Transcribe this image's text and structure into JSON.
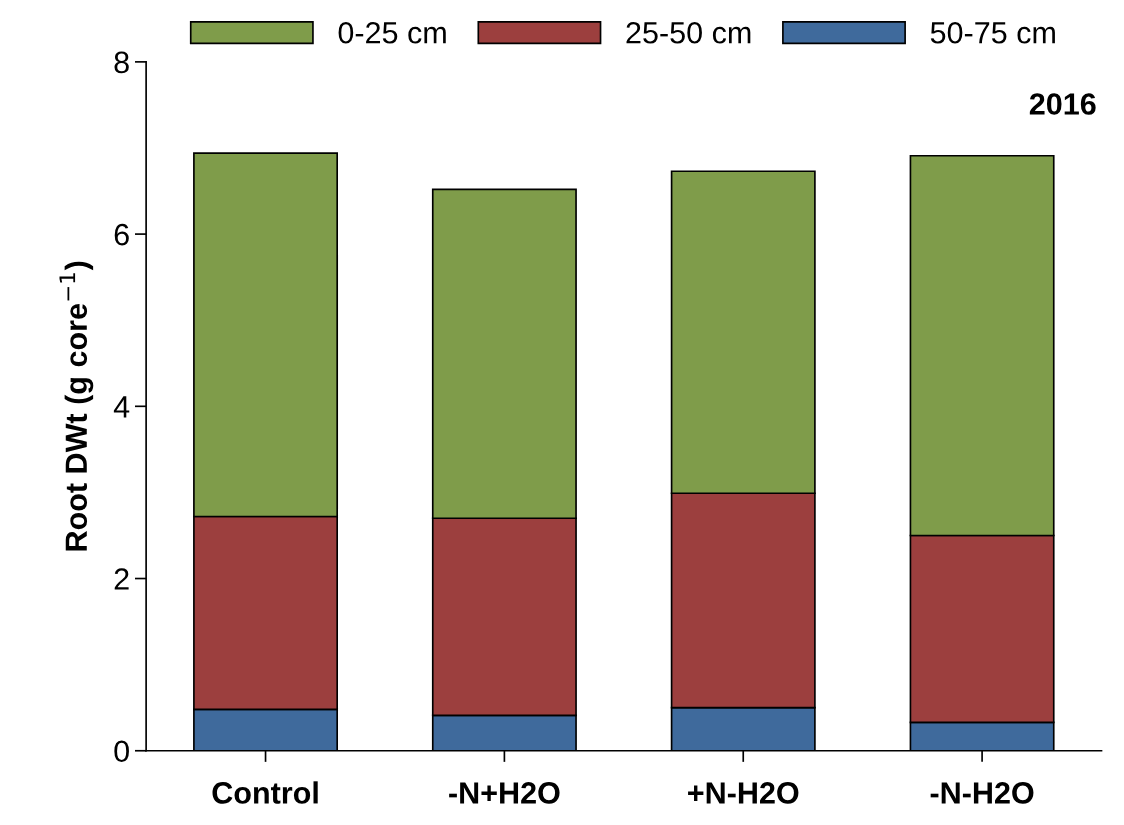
{
  "chart_data": {
    "type": "bar",
    "stacked": true,
    "ylabel": "Root DWt (g core$^{−1}$)",
    "categories": [
      "Control",
      "-N+H2O",
      "+N-H2O",
      "-N-H2O"
    ],
    "series": [
      {
        "name": "50-75 cm",
        "color": "#3f6a9c",
        "values": [
          0.48,
          0.41,
          0.5,
          0.33
        ]
      },
      {
        "name": "25-50 cm",
        "color": "#9c3f3e",
        "values": [
          2.24,
          2.29,
          2.49,
          2.17
        ]
      },
      {
        "name": "0-25 cm",
        "color": "#7f9c4a",
        "values": [
          4.22,
          3.82,
          3.74,
          4.41
        ]
      }
    ],
    "ylim": [
      0,
      8
    ],
    "yticks": [
      0,
      2,
      4,
      6,
      8
    ],
    "annotations": [
      "2016"
    ],
    "legend": "top",
    "grid": false
  }
}
